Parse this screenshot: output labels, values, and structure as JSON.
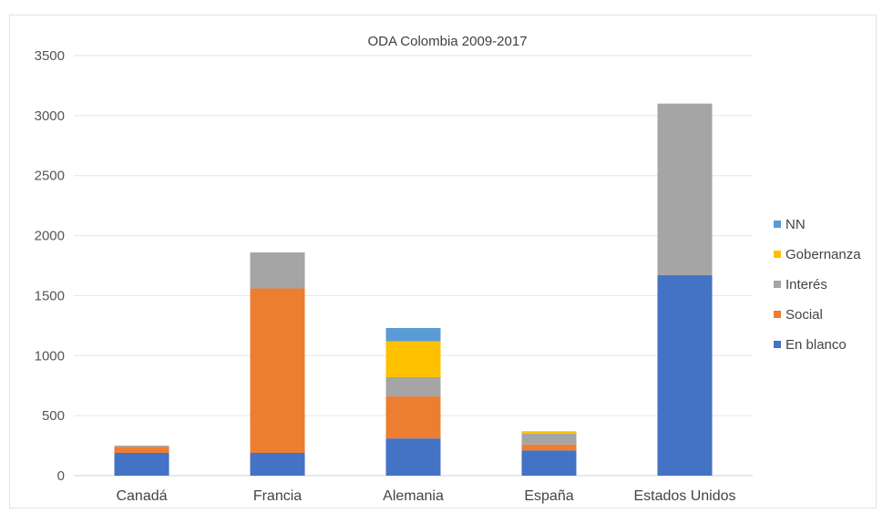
{
  "chart_data": {
    "type": "bar",
    "stacked": true,
    "title": "ODA Colombia 2009-2017",
    "categories": [
      "Canadá",
      "Francia",
      "Alemania",
      "España",
      "Estados Unidos"
    ],
    "series": [
      {
        "name": "En blanco",
        "color": "#4472c4",
        "values": [
          190,
          190,
          310,
          210,
          1670
        ]
      },
      {
        "name": "Social",
        "color": "#ed7d31",
        "values": [
          50,
          1370,
          350,
          50,
          0
        ]
      },
      {
        "name": "Interés",
        "color": "#a5a5a5",
        "values": [
          10,
          300,
          160,
          90,
          1430
        ]
      },
      {
        "name": "Gobernanza",
        "color": "#ffc000",
        "values": [
          0,
          0,
          300,
          20,
          0
        ]
      },
      {
        "name": "NN",
        "color": "#5b9bd5",
        "values": [
          0,
          0,
          110,
          0,
          0
        ]
      }
    ],
    "legend_order": [
      "NN",
      "Gobernanza",
      "Interés",
      "Social",
      "En blanco"
    ],
    "ylim": [
      0,
      3500
    ],
    "yticks": [
      0,
      500,
      1000,
      1500,
      2000,
      2500,
      3000,
      3500
    ],
    "grid": true,
    "legend_position": "right"
  }
}
